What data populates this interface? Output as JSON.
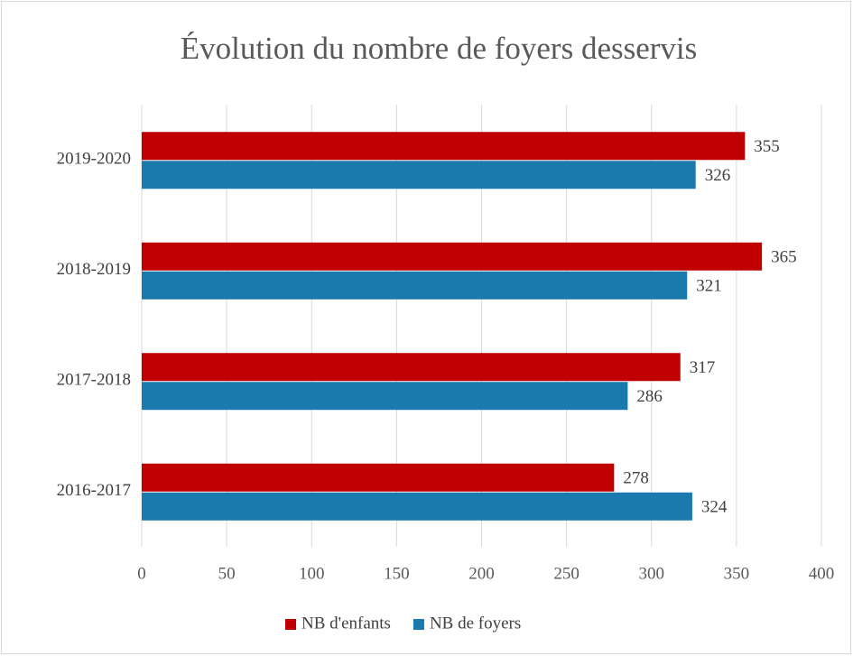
{
  "chart_data": {
    "type": "barh",
    "title": "Évolution du nombre de foyers desservis",
    "categories": [
      "2016-2017",
      "2017-2018",
      "2018-2019",
      "2019-2020"
    ],
    "series": [
      {
        "name": "NB d'enfants",
        "color": "#c00000",
        "values": [
          278,
          317,
          365,
          355
        ]
      },
      {
        "name": "NB de foyers",
        "color": "#1a7aad",
        "values": [
          324,
          286,
          321,
          326
        ]
      }
    ],
    "xlim": [
      0,
      400
    ],
    "xticks": [
      0,
      50,
      100,
      150,
      200,
      250,
      300,
      350,
      400
    ],
    "grid": true,
    "legend": "bottom"
  }
}
